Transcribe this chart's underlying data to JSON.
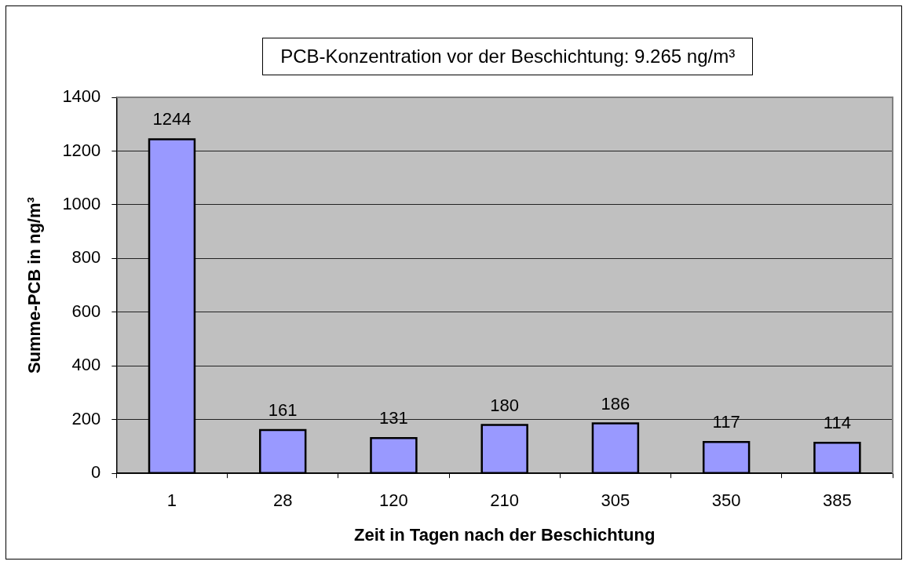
{
  "chart_data": {
    "type": "bar",
    "categories": [
      "1",
      "28",
      "120",
      "210",
      "305",
      "350",
      "385"
    ],
    "values": [
      1244,
      161,
      131,
      180,
      186,
      117,
      114
    ],
    "color": "#9999ff",
    "xlabel": "Zeit in Tagen nach der Beschichtung",
    "ylabel": "Summe-PCB in ng/m³",
    "ylim": [
      0,
      1400
    ],
    "yticks": [
      0,
      200,
      400,
      600,
      800,
      1000,
      1200,
      1400
    ],
    "grid": "y",
    "data_labels": true,
    "annotations": [
      "PCB-Konzentration vor der Beschichtung: 9.265 ng/m³"
    ]
  }
}
